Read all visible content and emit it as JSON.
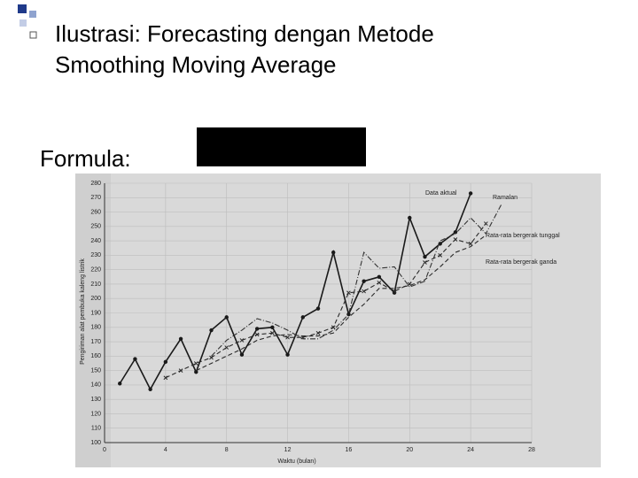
{
  "title": [
    "Ilustrasi: Forecasting dengan Metode",
    "Smoothing Moving Average"
  ],
  "formula_label": "Formula:",
  "chart_data": {
    "type": "line",
    "x_label": "Waktu (bulan)",
    "y_label": "Pengiriman alat pembuka kaleng listrik",
    "x": [
      1,
      2,
      3,
      4,
      5,
      6,
      7,
      8,
      9,
      10,
      11,
      12,
      13,
      14,
      15,
      16,
      17,
      18,
      19,
      20,
      21,
      22,
      23,
      24,
      25,
      26
    ],
    "series": [
      {
        "name": "Data aktual",
        "color": "#1a1a1a",
        "dash": "solid",
        "marker": "circle",
        "values": [
          141,
          158,
          137,
          156,
          172,
          149,
          178,
          187,
          161,
          179,
          180,
          161,
          187,
          193,
          232,
          189,
          212,
          215,
          204,
          256,
          229,
          238,
          246,
          273,
          null,
          null
        ]
      },
      {
        "name": "Rata-rata bergerak tunggal",
        "color": "#2a2a2a",
        "dash": "dashed",
        "marker": "cross",
        "values": [
          null,
          null,
          null,
          145,
          150,
          155,
          159,
          166,
          171,
          175,
          176,
          173,
          173,
          176,
          180,
          204,
          205,
          211,
          205,
          210,
          225,
          230,
          241,
          238,
          252,
          null
        ]
      },
      {
        "name": "Rata-rata bergerak ganda",
        "color": "#2a2a2a",
        "dash": "dashed",
        "marker": "none",
        "values": [
          null,
          null,
          null,
          null,
          null,
          150,
          155,
          160,
          165,
          171,
          174,
          175,
          174,
          174,
          176,
          187,
          196,
          207,
          207,
          209,
          213,
          222,
          232,
          236,
          244,
          null
        ]
      },
      {
        "name": "Ramalan",
        "color": "#333333",
        "dash": "dashdot",
        "marker": "none",
        "values": [
          null,
          null,
          null,
          null,
          null,
          null,
          160,
          171,
          178,
          186,
          183,
          178,
          172,
          172,
          178,
          189,
          232,
          221,
          222,
          208,
          212,
          240,
          245,
          256,
          245,
          265
        ]
      }
    ],
    "xlim": [
      0,
      28
    ],
    "xticks": [
      0,
      4,
      8,
      12,
      16,
      20,
      24,
      28
    ],
    "ylim": [
      100,
      280
    ],
    "yticks": [
      100,
      110,
      120,
      130,
      140,
      150,
      160,
      170,
      180,
      190,
      200,
      210,
      220,
      230,
      240,
      250,
      260,
      270,
      280
    ],
    "grid": true
  }
}
